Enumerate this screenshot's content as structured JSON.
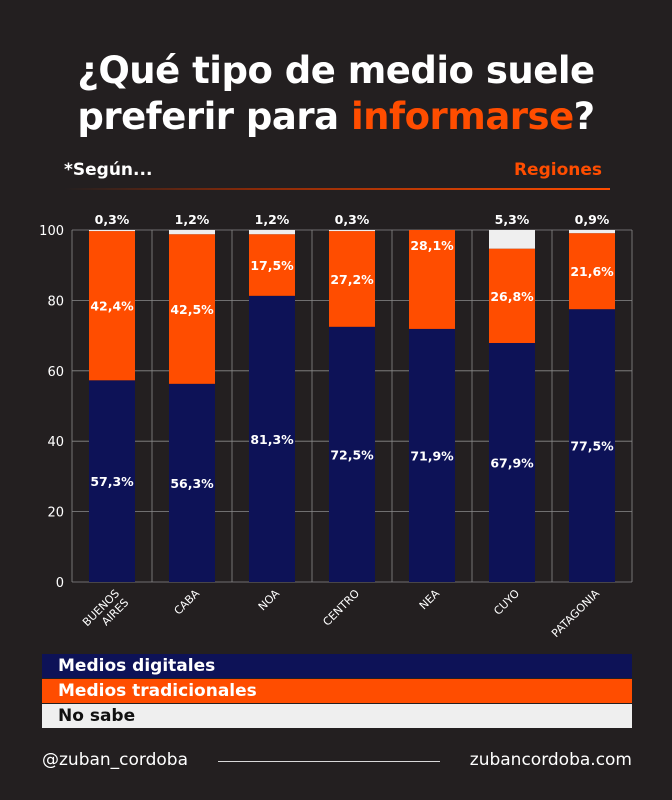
{
  "title": {
    "part1": "¿Qué tipo de medio suele",
    "part2": "preferir para",
    "highlight": "informarse",
    "end": "?"
  },
  "subtitle_left": "*Según...",
  "subtitle_right": "Regiones",
  "colors": {
    "digital": "#0d1257",
    "traditional": "#ff4d00",
    "nosabe": "#efefef",
    "accent": "#ff4d00",
    "background": "#231f20"
  },
  "chart_data": {
    "type": "bar",
    "stacked": true,
    "categories": [
      "BUENOS AIRES",
      "CABA",
      "NOA",
      "CENTRO",
      "NEA",
      "CUYO",
      "PATAGONIA"
    ],
    "series": [
      {
        "name": "Medios digitales",
        "values": [
          57.3,
          56.3,
          81.3,
          72.5,
          71.9,
          67.9,
          77.5
        ],
        "labels": [
          "57,3%",
          "56,3%",
          "81,3%",
          "72,5%",
          "71,9%",
          "67,9%",
          "77,5%"
        ]
      },
      {
        "name": "Medios tradicionales",
        "values": [
          42.4,
          42.5,
          17.5,
          27.2,
          28.1,
          26.8,
          21.6
        ],
        "labels": [
          "42,4%",
          "42,5%",
          "17,5%",
          "27,2%",
          "28,1%",
          "26,8%",
          "21,6%"
        ]
      },
      {
        "name": "No sabe",
        "values": [
          0.3,
          1.2,
          1.2,
          0.3,
          0,
          5.3,
          0.9
        ],
        "labels": [
          "0,3%",
          "1,2%",
          "1,2%",
          "0,3%",
          "",
          "5,3%",
          "0,9%"
        ]
      }
    ],
    "ylim": [
      0,
      100
    ],
    "yticks": [
      0,
      20,
      40,
      60,
      80,
      100
    ],
    "grid": true
  },
  "legend": [
    "Medios digitales",
    "Medios tradicionales",
    "No sabe"
  ],
  "footer": {
    "handle": "@zuban_cordoba",
    "site": "zubancordoba.com"
  }
}
